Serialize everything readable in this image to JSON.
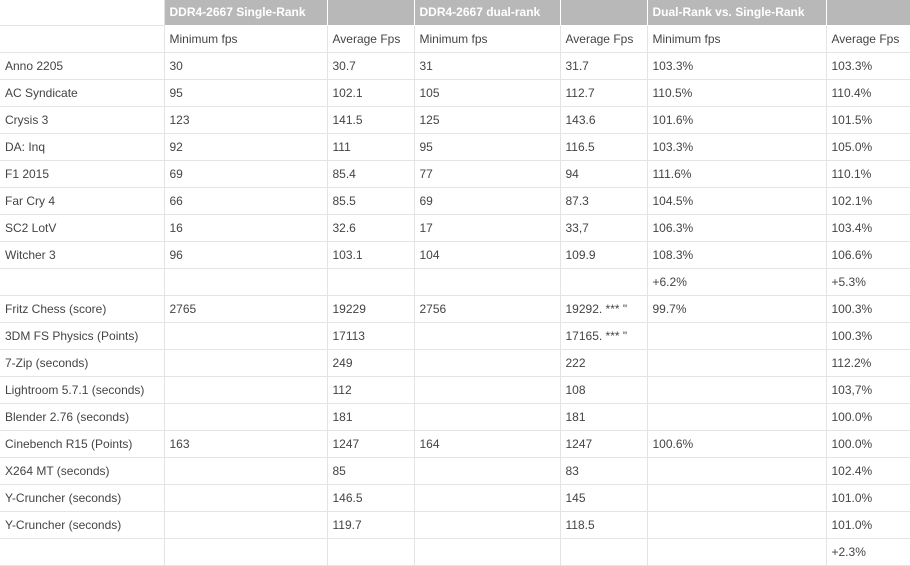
{
  "group_headers": [
    "",
    "DDR4-2667 Single-Rank",
    "",
    "DDR4-2667 dual-rank",
    "",
    "Dual-Rank vs. Single-Rank",
    ""
  ],
  "sub_headers": [
    "",
    "Minimum fps",
    "Average Fps",
    "Minimum fps",
    "Average Fps",
    "Minimum fps",
    "Average Fps"
  ],
  "rows": [
    [
      "Anno 2205",
      "30",
      "30.7",
      "31",
      "31.7",
      "103.3%",
      "103.3%"
    ],
    [
      "AC Syndicate",
      "95",
      "102.1",
      "105",
      "112.7",
      "110.5%",
      "110.4%"
    ],
    [
      "Crysis 3",
      "123",
      "141.5",
      "125",
      "143.6",
      "101.6%",
      "101.5%"
    ],
    [
      "DA: Inq",
      "92",
      "111",
      "95",
      "116.5",
      "103.3%",
      "105.0%"
    ],
    [
      "F1 2015",
      "69",
      "85.4",
      "77",
      "94",
      "111.6%",
      "110.1%"
    ],
    [
      "Far Cry 4",
      "66",
      "85.5",
      "69",
      "87.3",
      "104.5%",
      "102.1%"
    ],
    [
      "SC2 LotV",
      "16",
      "32.6",
      "17",
      "33,7",
      "106.3%",
      "103.4%"
    ],
    [
      "Witcher 3",
      "96",
      "103.1",
      "104",
      "109.9",
      "108.3%",
      "106.6%"
    ],
    [
      "",
      "",
      "",
      "",
      "",
      "+6.2%",
      "+5.3%"
    ],
    [
      "Fritz Chess (score)",
      "2765",
      "19229",
      "2756",
      "19292. *** \"",
      "99.7%",
      "100.3%"
    ],
    [
      "3DM FS Physics (Points)",
      "",
      "17113",
      "",
      "17165. *** \"",
      "",
      "100.3%"
    ],
    [
      "7-Zip (seconds)",
      "",
      "249",
      "",
      "222",
      "",
      "112.2%"
    ],
    [
      "Lightroom 5.7.1 (seconds)",
      "",
      "112",
      "",
      "108",
      "",
      "103,7%"
    ],
    [
      "Blender 2.76 (seconds)",
      "",
      "181",
      "",
      "181",
      "",
      "100.0%"
    ],
    [
      "Cinebench R15 (Points)",
      "163",
      "1247",
      "164",
      "1247",
      "100.6%",
      "100.0%"
    ],
    [
      "X264 MT (seconds)",
      "",
      "85",
      "",
      "83",
      "",
      "102.4%"
    ],
    [
      "Y-Cruncher (seconds)",
      "",
      "146.5",
      "",
      "145",
      "",
      "101.0%"
    ],
    [
      "Y-Cruncher (seconds)",
      "",
      "119.7",
      "",
      "118.5",
      "",
      "101.0%"
    ],
    [
      "",
      "",
      "",
      "",
      "",
      "",
      "+2.3%"
    ]
  ]
}
